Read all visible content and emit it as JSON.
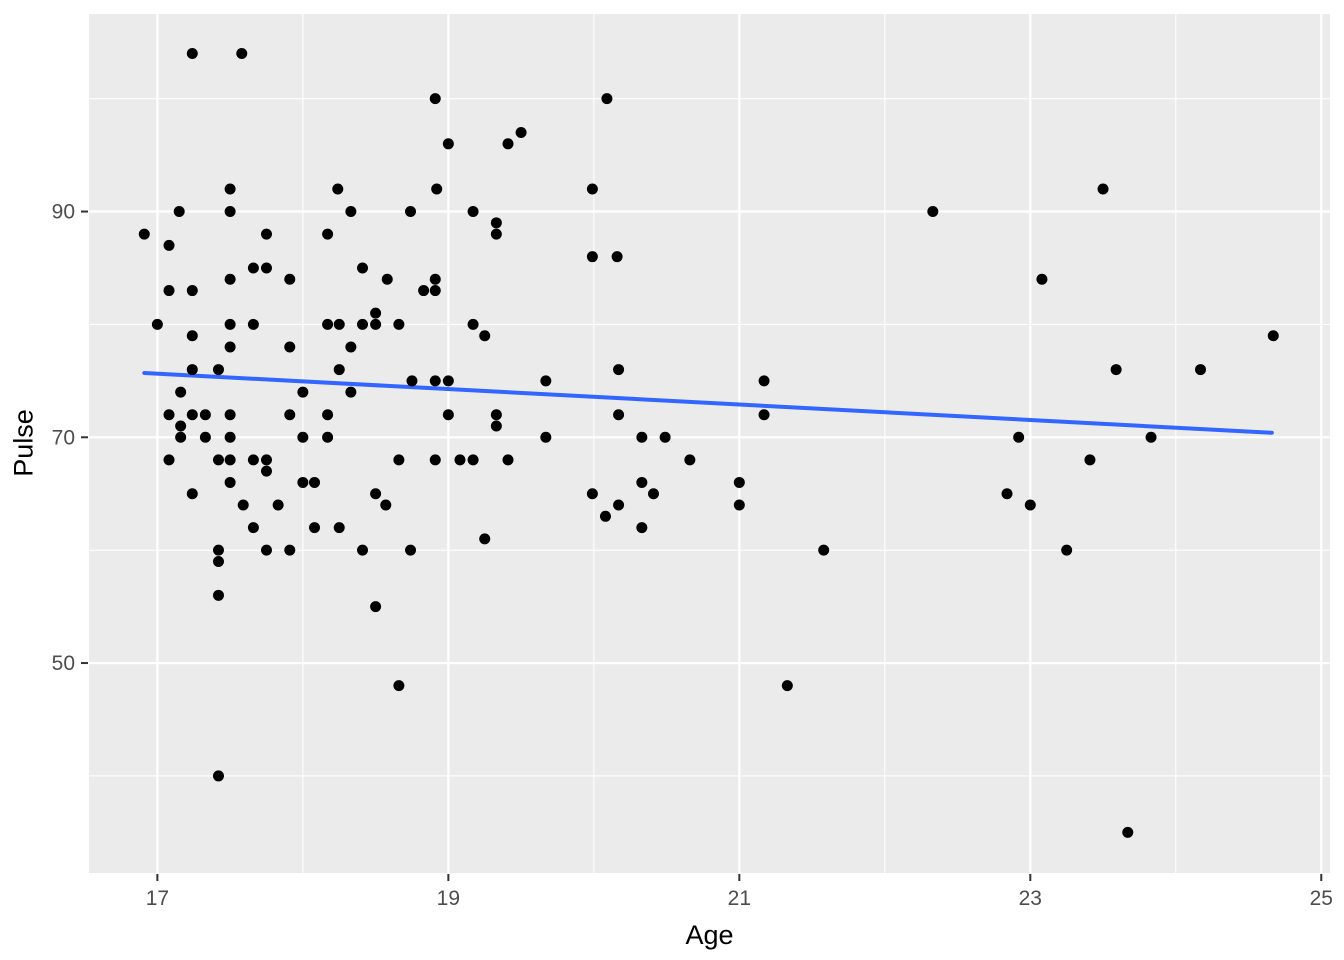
{
  "chart_data": {
    "type": "scatter",
    "title": "",
    "xlabel": "Age",
    "ylabel": "Pulse",
    "x_domain": [
      16.53,
      25.06
    ],
    "y_domain": [
      31.4,
      107.5
    ],
    "x_major_ticks": [
      17,
      19,
      21,
      23,
      25
    ],
    "x_minor_ticks": [
      18,
      20,
      22,
      24
    ],
    "y_major_ticks": [
      50,
      70,
      90
    ],
    "y_minor_ticks": [
      40,
      60,
      80,
      100
    ],
    "grid": true,
    "legend": "none",
    "colors": {
      "panel_background": "#EBEBEB",
      "grid_line": "#FFFFFF",
      "point": "#000000",
      "trend_line": "#3366FF",
      "tick_mark": "#333333",
      "tick_label": "#4D4D4D",
      "axis_title": "#000000"
    },
    "trend_line": {
      "x1": 16.91,
      "y1": 75.7,
      "x2": 24.66,
      "y2": 70.4
    },
    "points": [
      [
        17.24,
        104
      ],
      [
        17.58,
        104
      ],
      [
        18.91,
        100
      ],
      [
        20.09,
        100
      ],
      [
        19.5,
        97
      ],
      [
        19.0,
        96
      ],
      [
        19.41,
        96
      ],
      [
        17.5,
        92
      ],
      [
        18.24,
        92
      ],
      [
        18.92,
        92
      ],
      [
        19.99,
        92
      ],
      [
        23.5,
        92
      ],
      [
        17.15,
        90
      ],
      [
        17.5,
        90
      ],
      [
        18.33,
        90
      ],
      [
        18.74,
        90
      ],
      [
        19.17,
        90
      ],
      [
        22.33,
        90
      ],
      [
        19.33,
        89
      ],
      [
        16.91,
        88
      ],
      [
        17.75,
        88
      ],
      [
        18.17,
        88
      ],
      [
        19.33,
        88
      ],
      [
        17.08,
        87
      ],
      [
        19.99,
        86
      ],
      [
        20.16,
        86
      ],
      [
        17.66,
        85
      ],
      [
        17.75,
        85
      ],
      [
        18.41,
        85
      ],
      [
        17.5,
        84
      ],
      [
        17.91,
        84
      ],
      [
        18.58,
        84
      ],
      [
        18.91,
        84
      ],
      [
        23.08,
        84
      ],
      [
        17.08,
        83
      ],
      [
        17.24,
        83
      ],
      [
        18.83,
        83
      ],
      [
        18.91,
        83
      ],
      [
        18.5,
        81
      ],
      [
        17.0,
        80
      ],
      [
        17.5,
        80
      ],
      [
        17.66,
        80
      ],
      [
        18.17,
        80
      ],
      [
        18.25,
        80
      ],
      [
        18.41,
        80
      ],
      [
        18.5,
        80
      ],
      [
        18.66,
        80
      ],
      [
        19.17,
        80
      ],
      [
        17.24,
        79
      ],
      [
        19.25,
        79
      ],
      [
        24.67,
        79
      ],
      [
        17.5,
        78
      ],
      [
        17.91,
        78
      ],
      [
        18.33,
        78
      ],
      [
        17.24,
        76
      ],
      [
        17.42,
        76
      ],
      [
        18.25,
        76
      ],
      [
        20.17,
        76
      ],
      [
        23.59,
        76
      ],
      [
        24.17,
        76
      ],
      [
        18.75,
        75
      ],
      [
        18.91,
        75
      ],
      [
        19.0,
        75
      ],
      [
        19.67,
        75
      ],
      [
        21.17,
        75
      ],
      [
        17.16,
        74
      ],
      [
        18.0,
        74
      ],
      [
        18.33,
        74
      ],
      [
        17.08,
        72
      ],
      [
        17.24,
        72
      ],
      [
        17.33,
        72
      ],
      [
        17.5,
        72
      ],
      [
        17.91,
        72
      ],
      [
        18.17,
        72
      ],
      [
        19.0,
        72
      ],
      [
        19.33,
        72
      ],
      [
        20.17,
        72
      ],
      [
        21.17,
        72
      ],
      [
        17.16,
        71
      ],
      [
        19.33,
        71
      ],
      [
        17.16,
        70
      ],
      [
        17.33,
        70
      ],
      [
        17.5,
        70
      ],
      [
        18.0,
        70
      ],
      [
        18.17,
        70
      ],
      [
        19.67,
        70
      ],
      [
        20.33,
        70
      ],
      [
        20.49,
        70
      ],
      [
        22.92,
        70
      ],
      [
        23.83,
        70
      ],
      [
        17.08,
        68
      ],
      [
        17.42,
        68
      ],
      [
        17.5,
        68
      ],
      [
        17.66,
        68
      ],
      [
        17.75,
        68
      ],
      [
        18.66,
        68
      ],
      [
        18.91,
        68
      ],
      [
        19.08,
        68
      ],
      [
        19.17,
        68
      ],
      [
        19.41,
        68
      ],
      [
        20.66,
        68
      ],
      [
        23.41,
        68
      ],
      [
        17.75,
        67
      ],
      [
        17.5,
        66
      ],
      [
        18.0,
        66
      ],
      [
        18.08,
        66
      ],
      [
        20.33,
        66
      ],
      [
        21.0,
        66
      ],
      [
        17.24,
        65
      ],
      [
        18.5,
        65
      ],
      [
        19.99,
        65
      ],
      [
        20.41,
        65
      ],
      [
        22.84,
        65
      ],
      [
        17.59,
        64
      ],
      [
        17.83,
        64
      ],
      [
        18.57,
        64
      ],
      [
        20.17,
        64
      ],
      [
        21.0,
        64
      ],
      [
        23.0,
        64
      ],
      [
        20.08,
        63
      ],
      [
        17.66,
        62
      ],
      [
        18.08,
        62
      ],
      [
        18.25,
        62
      ],
      [
        20.33,
        62
      ],
      [
        19.25,
        61
      ],
      [
        17.42,
        60
      ],
      [
        17.75,
        60
      ],
      [
        17.91,
        60
      ],
      [
        18.41,
        60
      ],
      [
        18.74,
        60
      ],
      [
        21.58,
        60
      ],
      [
        23.25,
        60
      ],
      [
        17.42,
        59
      ],
      [
        17.42,
        56
      ],
      [
        18.5,
        55
      ],
      [
        18.66,
        48
      ],
      [
        21.33,
        48
      ],
      [
        17.42,
        40
      ],
      [
        23.67,
        35
      ]
    ]
  }
}
